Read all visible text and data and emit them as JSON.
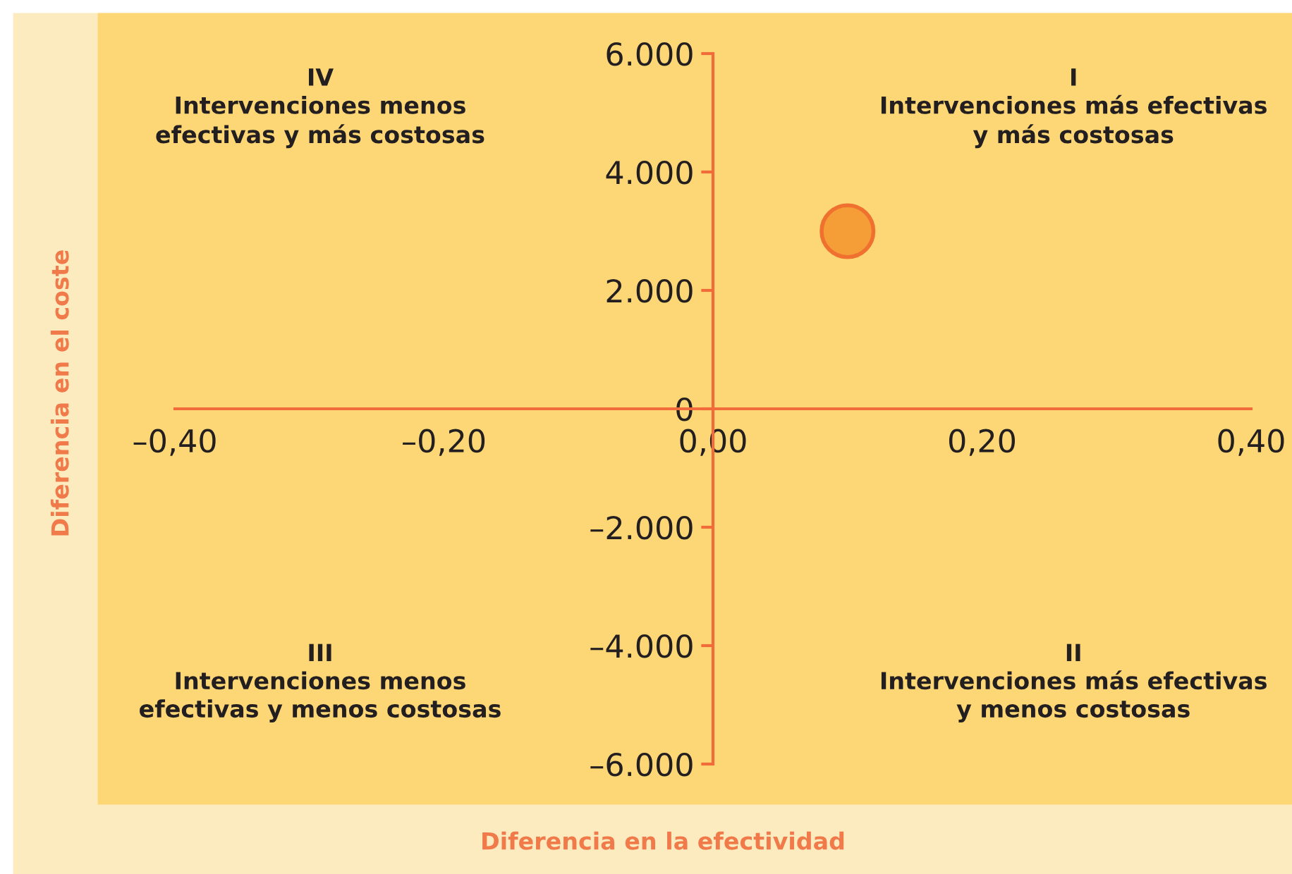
{
  "chart_data": {
    "type": "scatter",
    "xlabel": "Diferencia en la efectividad",
    "ylabel": "Diferencia en el coste",
    "series": [
      {
        "color": "#f59e38",
        "x": [
          0.1
        ],
        "values": [
          3000
        ]
      }
    ],
    "marker": "circle",
    "grid": false,
    "legend": false,
    "xlim": [
      -0.4,
      0.4
    ],
    "ylim": [
      -6000,
      6000
    ],
    "xticks": [
      {
        "value": -0.4,
        "label": "–0,40"
      },
      {
        "value": -0.2,
        "label": "–0,20"
      },
      {
        "value": 0,
        "label": "0,00"
      },
      {
        "value": 0.2,
        "label": "0,20"
      },
      {
        "value": 0.4,
        "label": "0,40"
      }
    ],
    "yticks": [
      {
        "value": -6000,
        "label": "–6.000"
      },
      {
        "value": -4000,
        "label": "–4.000"
      },
      {
        "value": -2000,
        "label": "–2.000"
      },
      {
        "value": 0,
        "label": "0"
      },
      {
        "value": 2000,
        "label": "2.000"
      },
      {
        "value": 4000,
        "label": "4.000"
      },
      {
        "value": 6000,
        "label": "6.000"
      }
    ],
    "annotations": [
      "IV\nIntervenciones menos\nefectivas y más costosas",
      "I\nIntervenciones más efectivas\ny más costosas",
      "III\nIntervenciones menos\nefectivas y menos costosas",
      "II\nIntervenciones más efectivas\ny menos costosas"
    ]
  }
}
